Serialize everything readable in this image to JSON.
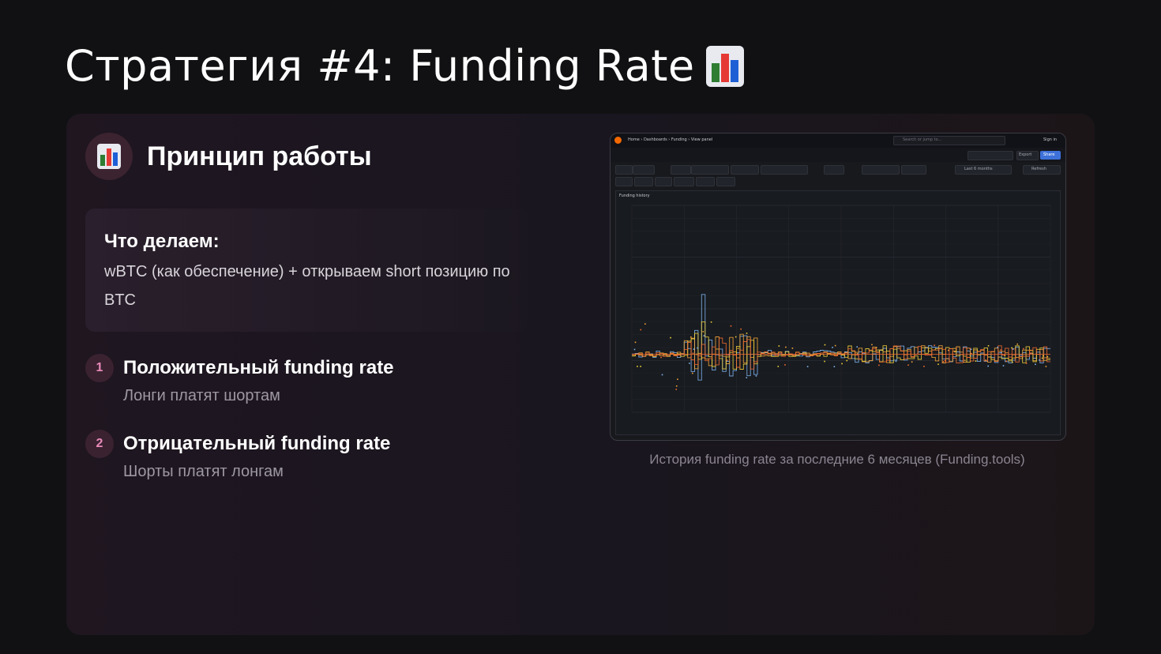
{
  "slide": {
    "title": "Стратегия #4: Funding Rate",
    "title_icon": "bar-chart-emoji"
  },
  "principle": {
    "icon": "bar-chart-emoji",
    "title": "Принцип работы"
  },
  "what_we_do": {
    "title": "Что делаем:",
    "text": "wBTC (как обеспечение) + открываем short позицию по BTC"
  },
  "items": [
    {
      "number": "1",
      "title": "Положительный funding rate",
      "subtitle": "Лонги платят шортам"
    },
    {
      "number": "2",
      "title": "Отрицательный funding rate",
      "subtitle": "Шорты платят лонгам"
    }
  ],
  "screenshot": {
    "breadcrumb": "Home › Dashboards › Funding › View panel",
    "search_placeholder": "Search or jump to...",
    "sign_in": "Sign in",
    "export": "Export",
    "share": "Share",
    "panel_title": "Funding history",
    "time_range": "Last 6 months",
    "refresh": "Refresh",
    "series_colors": [
      "#7eb3f0",
      "#f2a53a",
      "#f0d03a",
      "#f06a30"
    ]
  },
  "caption": "История funding rate за последние 6 месяцев (Funding.tools)"
}
